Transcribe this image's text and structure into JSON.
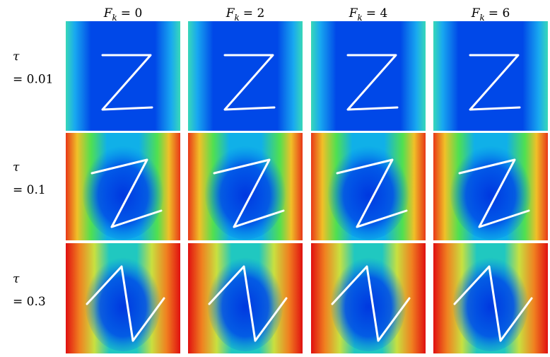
{
  "figure": {
    "columns": [
      {
        "symbol": "F",
        "subscript": "k",
        "value": "= 0"
      },
      {
        "symbol": "F",
        "subscript": "k",
        "value": "= 2"
      },
      {
        "symbol": "F",
        "subscript": "k",
        "value": "= 4"
      },
      {
        "symbol": "F",
        "subscript": "k",
        "value": "= 6"
      }
    ],
    "rows": [
      {
        "symbol": "τ",
        "value": "= 0.01"
      },
      {
        "symbol": "τ",
        "value": "= 0.1"
      },
      {
        "symbol": "τ",
        "value": "= 0.3"
      }
    ]
  }
}
